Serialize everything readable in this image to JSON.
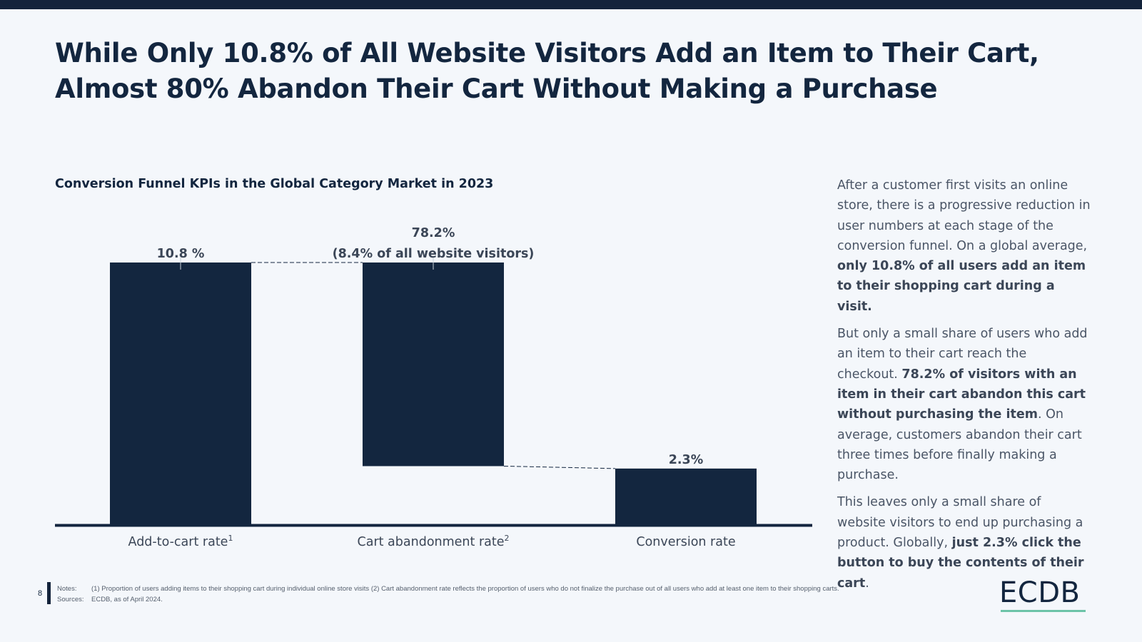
{
  "slide": {
    "title_line1": "While Only 10.8% of All Website Visitors Add an Item to Their Cart,",
    "title_line2": "Almost 80% Abandon Their Cart Without Making a Purchase",
    "page_number": "8"
  },
  "chart_data": {
    "type": "bar",
    "subtype": "waterfall",
    "title": "Conversion Funnel KPIs in the Global Category Market in 2023",
    "categories": [
      "Add-to-cart rate",
      "Cart abandonment rate",
      "Conversion rate"
    ],
    "category_superscripts": [
      "1",
      "2",
      ""
    ],
    "values": [
      10.8,
      8.4,
      2.3
    ],
    "reported_rates": [
      10.8,
      78.2,
      2.3
    ],
    "data_labels": [
      [
        "10.8 %"
      ],
      [
        "78.2%",
        "(8.4% of all website visitors)"
      ],
      [
        "2.3%"
      ]
    ],
    "xlabel": "",
    "ylabel": "",
    "ylim": [
      0,
      10.8
    ],
    "grid": false,
    "legend": "none",
    "bar_color": "#13263f"
  },
  "side_text": {
    "p1_a": "After a customer first visits an online store, there is a progressive reduction in user numbers at each stage of the conversion funnel. On a global average, ",
    "p1_b": "only 10.8% of all users add an item to their shopping cart during a visit.",
    "p2_a": "But only a small share of users who add an item to their cart reach the checkout. ",
    "p2_b": "78.2% of visitors with an item in their cart abandon this cart without purchasing the item",
    "p2_c": ". On average, customers abandon their cart three times before finally making a purchase.",
    "p3_a": "This leaves only a small share of website visitors to end up purchasing a product. Globally, ",
    "p3_b": "just 2.3% click the button to buy the contents of their cart",
    "p3_c": "."
  },
  "footer": {
    "notes_label": "Notes:",
    "notes_text": "(1) Proportion of users adding items to their shopping cart during individual online store visits (2) Cart abandonment rate reflects the proportion of users who do not finalize the purchase out of all users who add at least one item to their shopping carts.",
    "sources_label": "Sources:",
    "sources_text": "ECDB, as of April 2024."
  },
  "logo": {
    "text": "ECDB",
    "accent_color": "#6cc3a8"
  }
}
